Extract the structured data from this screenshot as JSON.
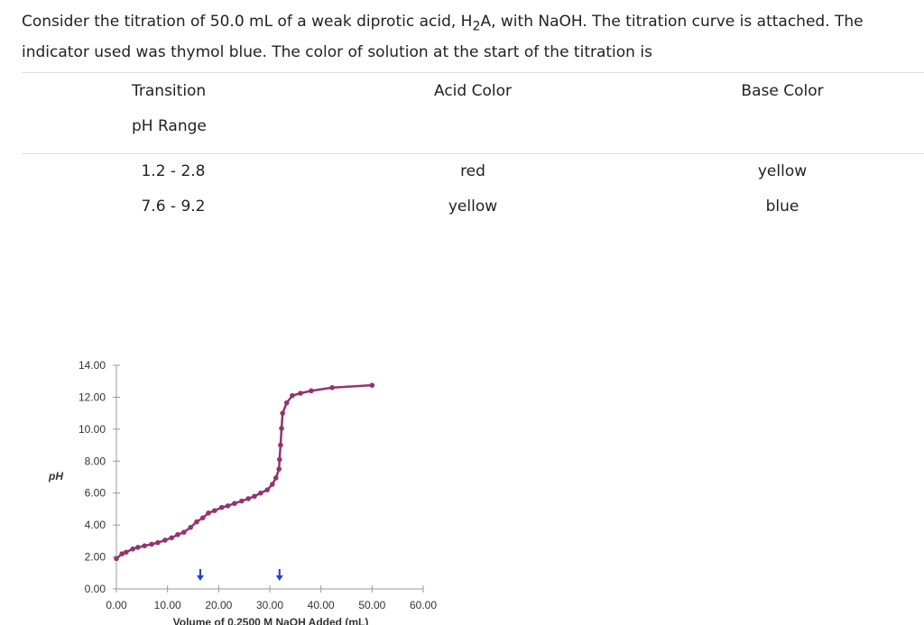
{
  "question": {
    "before": "Consider the titration of 50.0 mL of a weak diprotic acid, H",
    "sub": "2",
    "after": "A, with NaOH. The titration curve is attached. The indicator used was thymol blue. The color of solution at the start of the titration is"
  },
  "table": {
    "headers": [
      "Transition",
      "Acid Color",
      "Base Color"
    ],
    "header_sub": "pH Range",
    "rows": [
      [
        "1.2 - 2.8",
        "red",
        "yellow"
      ],
      [
        "7.6 - 9.2",
        "yellow",
        "blue"
      ]
    ]
  },
  "chart_data": {
    "type": "line",
    "x_label": "Volume of 0.2500 M NaOH Added (mL)",
    "y_label": "pH",
    "color": "#94336f",
    "arrow_color": "#1f3fd6",
    "arrows": [
      16.4,
      31.9
    ],
    "x": [
      0,
      1.1,
      1.9,
      3.2,
      4.2,
      5.5,
      6.9,
      8.1,
      9.5,
      10.8,
      12,
      13.2,
      14.5,
      15.7,
      16.9,
      18,
      19.2,
      20.6,
      21.8,
      23.1,
      24.5,
      25.8,
      27,
      28.2,
      29.5,
      30.5,
      31.2,
      31.8,
      31.9,
      32.1,
      32.3,
      32.5,
      33.3,
      34.4,
      36,
      38.1,
      42.2,
      50
    ],
    "values": [
      1.9,
      2.2,
      2.3,
      2.5,
      2.6,
      2.7,
      2.8,
      2.9,
      3.05,
      3.2,
      3.4,
      3.55,
      3.85,
      4.2,
      4.45,
      4.75,
      4.9,
      5.1,
      5.2,
      5.35,
      5.5,
      5.65,
      5.8,
      6.0,
      6.2,
      6.55,
      6.95,
      7.5,
      8.1,
      9.0,
      10.05,
      11.0,
      11.65,
      12.1,
      12.25,
      12.4,
      12.6,
      12.75
    ],
    "xlim": [
      0,
      60
    ],
    "xticks": [
      {
        "value": 0,
        "label": "0.00"
      },
      {
        "value": 10,
        "label": "10.00"
      },
      {
        "value": 20,
        "label": "20.00"
      },
      {
        "value": 30,
        "label": "30.00"
      },
      {
        "value": 40,
        "label": "40.00"
      },
      {
        "value": 50,
        "label": "50.00"
      },
      {
        "value": 60,
        "label": "60.00"
      }
    ],
    "ylim": [
      0,
      14
    ],
    "yticks": [
      {
        "value": 0,
        "label": "0.00"
      },
      {
        "value": 2,
        "label": "2.00"
      },
      {
        "value": 4,
        "label": "4.00"
      },
      {
        "value": 6,
        "label": "6.00"
      },
      {
        "value": 8,
        "label": "8.00"
      },
      {
        "value": 10,
        "label": "10.00"
      },
      {
        "value": 12,
        "label": "12.00"
      },
      {
        "value": 14,
        "label": "14.00"
      }
    ]
  }
}
